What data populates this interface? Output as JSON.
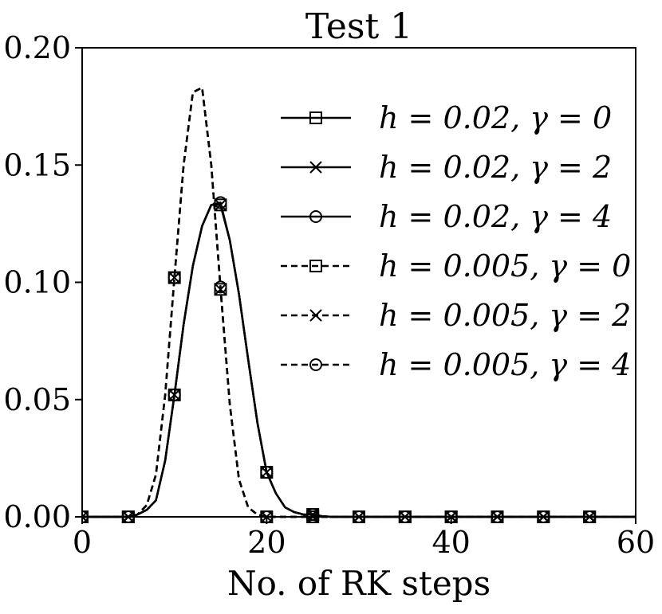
{
  "chart_data": {
    "type": "line",
    "title": "Test 1",
    "xlabel": "No. of RK steps",
    "ylabel": "",
    "xlim": [
      0,
      60
    ],
    "ylim": [
      0,
      0.2
    ],
    "x_ticks": [
      0,
      20,
      40,
      60
    ],
    "x_tick_labels": [
      "0",
      "20",
      "40",
      "60"
    ],
    "y_ticks": [
      0,
      0.05,
      0.1,
      0.15,
      0.2
    ],
    "y_tick_labels": [
      "0.00",
      "0.05",
      "0.10",
      "0.15",
      "0.20"
    ],
    "grid": false,
    "legend_position": "right",
    "line_color": "#000000",
    "series": [
      {
        "name": "h = 0.02, γ = 0",
        "line_style": "solid",
        "marker": "square",
        "x": [
          0,
          1,
          2,
          3,
          4,
          5,
          6,
          7,
          8,
          9,
          10,
          11,
          12,
          13,
          14,
          15,
          16,
          17,
          18,
          19,
          20,
          21,
          22,
          23,
          24,
          25,
          26,
          27,
          28,
          29,
          30,
          32,
          35,
          40,
          45,
          50,
          55,
          60
        ],
        "y": [
          0,
          0,
          0,
          0,
          0,
          0,
          0.001,
          0.003,
          0.007,
          0.024,
          0.052,
          0.082,
          0.107,
          0.124,
          0.133,
          0.133,
          0.118,
          0.095,
          0.067,
          0.04,
          0.019,
          0.01,
          0.004,
          0.002,
          0.001,
          0.001,
          0.0003,
          0,
          0,
          0,
          0,
          0,
          0,
          0,
          0,
          0,
          0,
          0
        ],
        "marker_x": [
          0,
          5,
          10,
          15,
          20,
          25,
          30,
          35,
          40,
          45,
          50,
          55
        ],
        "marker_y": [
          0,
          0,
          0.052,
          0.133,
          0.019,
          0.001,
          0,
          0,
          0,
          0,
          0,
          0
        ]
      },
      {
        "name": "h = 0.02, γ = 2",
        "line_style": "solid",
        "marker": "x",
        "x": [
          0,
          1,
          2,
          3,
          4,
          5,
          6,
          7,
          8,
          9,
          10,
          11,
          12,
          13,
          14,
          15,
          16,
          17,
          18,
          19,
          20,
          21,
          22,
          23,
          24,
          25,
          26,
          27,
          28,
          29,
          30,
          32,
          35,
          40,
          45,
          50,
          55,
          60
        ],
        "y": [
          0,
          0,
          0,
          0,
          0,
          0,
          0.001,
          0.003,
          0.007,
          0.024,
          0.052,
          0.082,
          0.107,
          0.124,
          0.133,
          0.133,
          0.118,
          0.095,
          0.067,
          0.04,
          0.019,
          0.01,
          0.004,
          0.002,
          0.001,
          0.001,
          0.0003,
          0,
          0,
          0,
          0,
          0,
          0,
          0,
          0,
          0,
          0,
          0
        ],
        "marker_x": [
          0,
          5,
          10,
          15,
          20,
          25,
          30,
          35,
          40,
          45,
          50,
          55
        ],
        "marker_y": [
          0,
          0,
          0.052,
          0.133,
          0.019,
          0.001,
          0,
          0,
          0,
          0,
          0,
          0
        ]
      },
      {
        "name": "h = 0.02, γ = 4",
        "line_style": "solid",
        "marker": "circle",
        "x": [
          0,
          1,
          2,
          3,
          4,
          5,
          6,
          7,
          8,
          9,
          10,
          11,
          12,
          13,
          14,
          15,
          16,
          17,
          18,
          19,
          20,
          21,
          22,
          23,
          24,
          25,
          26,
          27,
          28,
          29,
          30,
          32,
          35,
          40,
          45,
          50,
          55,
          60
        ],
        "y": [
          0,
          0,
          0,
          0,
          0,
          0,
          0.001,
          0.003,
          0.007,
          0.024,
          0.052,
          0.082,
          0.107,
          0.124,
          0.133,
          0.134,
          0.118,
          0.095,
          0.067,
          0.04,
          0.019,
          0.01,
          0.004,
          0.002,
          0.001,
          0.001,
          0.0003,
          0,
          0,
          0,
          0,
          0,
          0,
          0,
          0,
          0,
          0,
          0
        ],
        "marker_x": [
          0,
          5,
          10,
          15,
          20,
          25,
          30,
          35,
          40,
          45,
          50,
          55
        ],
        "marker_y": [
          0,
          0,
          0.052,
          0.134,
          0.019,
          0.001,
          0,
          0,
          0,
          0,
          0,
          0
        ]
      },
      {
        "name": "h = 0.005, γ = 0",
        "line_style": "dashed",
        "marker": "square",
        "x": [
          0,
          1,
          2,
          3,
          4,
          5,
          6,
          7,
          8,
          9,
          10,
          11,
          12,
          13,
          14,
          15,
          16,
          17,
          18,
          19,
          20,
          21,
          22,
          23,
          24,
          25,
          30,
          35,
          40,
          45,
          50,
          55,
          60
        ],
        "y": [
          0,
          0,
          0,
          0,
          0,
          0,
          0.001,
          0.005,
          0.018,
          0.052,
          0.102,
          0.15,
          0.181,
          0.183,
          0.15,
          0.097,
          0.048,
          0.016,
          0.004,
          0.001,
          0,
          0,
          0,
          0,
          0,
          0,
          0,
          0,
          0,
          0,
          0,
          0,
          0
        ],
        "marker_x": [
          0,
          5,
          10,
          15,
          20,
          25,
          30,
          35,
          40,
          45,
          50,
          55
        ],
        "marker_y": [
          0,
          0,
          0.102,
          0.097,
          0,
          0,
          0,
          0,
          0,
          0,
          0,
          0
        ]
      },
      {
        "name": "h = 0.005, γ = 2",
        "line_style": "dashed",
        "marker": "x",
        "x": [
          0,
          1,
          2,
          3,
          4,
          5,
          6,
          7,
          8,
          9,
          10,
          11,
          12,
          13,
          14,
          15,
          16,
          17,
          18,
          19,
          20,
          21,
          22,
          23,
          24,
          25,
          30,
          35,
          40,
          45,
          50,
          55,
          60
        ],
        "y": [
          0,
          0,
          0,
          0,
          0,
          0,
          0.001,
          0.005,
          0.018,
          0.052,
          0.102,
          0.15,
          0.181,
          0.183,
          0.15,
          0.097,
          0.048,
          0.016,
          0.004,
          0.001,
          0,
          0,
          0,
          0,
          0,
          0,
          0,
          0,
          0,
          0,
          0,
          0,
          0
        ],
        "marker_x": [
          0,
          5,
          10,
          15,
          20,
          25,
          30,
          35,
          40,
          45,
          50,
          55
        ],
        "marker_y": [
          0,
          0,
          0.102,
          0.097,
          0,
          0,
          0,
          0,
          0,
          0,
          0,
          0
        ]
      },
      {
        "name": "h = 0.005, γ = 4",
        "line_style": "dashed",
        "marker": "circle",
        "x": [
          0,
          1,
          2,
          3,
          4,
          5,
          6,
          7,
          8,
          9,
          10,
          11,
          12,
          13,
          14,
          15,
          16,
          17,
          18,
          19,
          20,
          21,
          22,
          23,
          24,
          25,
          30,
          35,
          40,
          45,
          50,
          55,
          60
        ],
        "y": [
          0,
          0,
          0,
          0,
          0,
          0,
          0.001,
          0.005,
          0.018,
          0.052,
          0.102,
          0.15,
          0.181,
          0.183,
          0.15,
          0.098,
          0.048,
          0.016,
          0.004,
          0.001,
          0,
          0,
          0,
          0,
          0,
          0,
          0,
          0,
          0,
          0,
          0,
          0,
          0
        ],
        "marker_x": [
          0,
          5,
          10,
          15,
          20,
          25,
          30,
          35,
          40,
          45,
          50,
          55
        ],
        "marker_y": [
          0,
          0,
          0.102,
          0.098,
          0,
          0,
          0,
          0,
          0,
          0,
          0,
          0
        ]
      }
    ]
  }
}
